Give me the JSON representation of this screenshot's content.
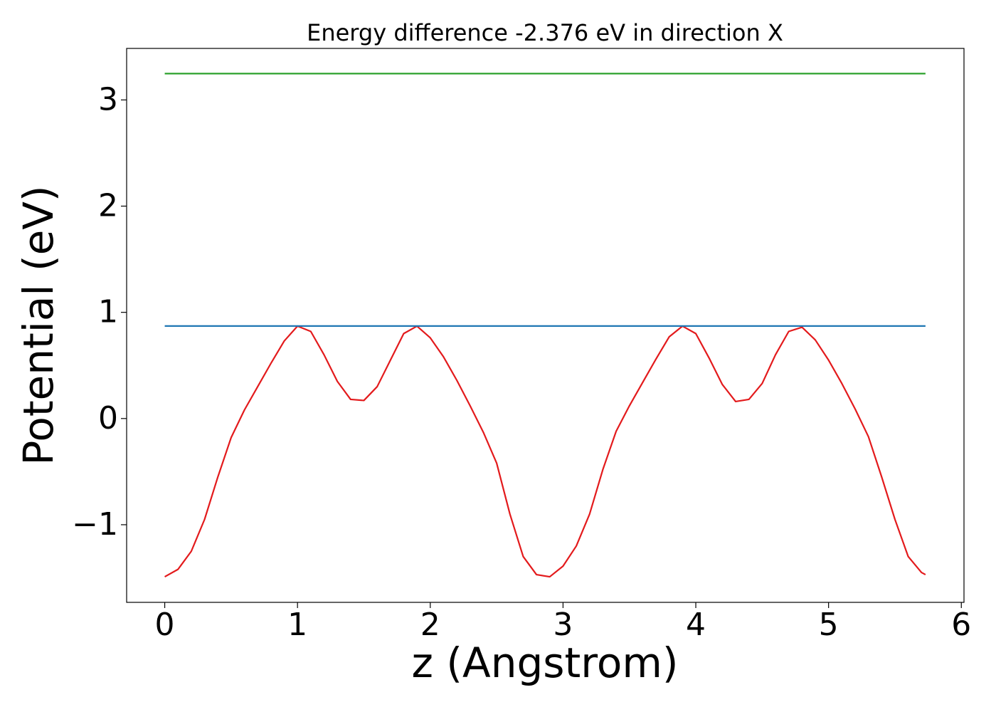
{
  "chart_data": {
    "type": "line",
    "title": "Energy difference -2.376 eV in direction X",
    "x_label": "z (Angstrom)",
    "y_label": "Potential (eV)",
    "xlim": [
      -0.287,
      6.02
    ],
    "ylim": [
      -1.731,
      3.485
    ],
    "xticks": [
      0,
      1,
      2,
      3,
      4,
      5,
      6
    ],
    "yticks": [
      {
        "value": -1,
        "label": "−1"
      },
      0,
      1,
      2,
      3
    ],
    "series": [
      {
        "color": "#e31a1c",
        "x": [
          0,
          0.1,
          0.2,
          0.3,
          0.4,
          0.5,
          0.6,
          0.7,
          0.8,
          0.9,
          1.0,
          1.1,
          1.2,
          1.3,
          1.4,
          1.5,
          1.6,
          1.7,
          1.8,
          1.9,
          2.0,
          2.1,
          2.2,
          2.3,
          2.4,
          2.5,
          2.6,
          2.7,
          2.8,
          2.9,
          3.0,
          3.1,
          3.2,
          3.3,
          3.4,
          3.5,
          3.6,
          3.7,
          3.8,
          3.9,
          4.0,
          4.1,
          4.2,
          4.3,
          4.4,
          4.5,
          4.6,
          4.7,
          4.8,
          4.9,
          5.0,
          5.1,
          5.2,
          5.3,
          5.4,
          5.5,
          5.6,
          5.7,
          5.73
        ],
        "values": [
          -1.49,
          -1.42,
          -1.25,
          -0.95,
          -0.55,
          -0.18,
          0.08,
          0.3,
          0.52,
          0.73,
          0.87,
          0.82,
          0.6,
          0.35,
          0.18,
          0.17,
          0.3,
          0.55,
          0.8,
          0.87,
          0.76,
          0.58,
          0.36,
          0.12,
          -0.13,
          -0.42,
          -0.9,
          -1.3,
          -1.47,
          -1.49,
          -1.39,
          -1.2,
          -0.9,
          -0.48,
          -0.12,
          0.12,
          0.34,
          0.56,
          0.77,
          0.87,
          0.8,
          0.57,
          0.32,
          0.16,
          0.18,
          0.33,
          0.6,
          0.82,
          0.86,
          0.74,
          0.55,
          0.33,
          0.09,
          -0.17,
          -0.55,
          -0.95,
          -1.3,
          -1.45,
          -1.47
        ]
      },
      {
        "color": "#1f77b4",
        "x": [
          0,
          5.73
        ],
        "values": [
          0.871,
          0.871
        ]
      },
      {
        "color": "#2ca02c",
        "x": [
          0,
          5.73
        ],
        "values": [
          3.248,
          3.248
        ]
      }
    ]
  }
}
